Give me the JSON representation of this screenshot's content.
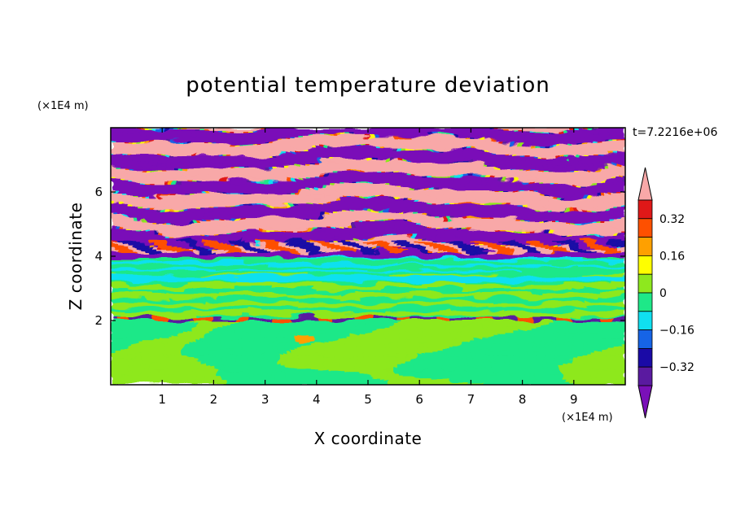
{
  "chart_data": {
    "type": "heatmap",
    "title": "potential temperature deviation",
    "xlabel": "X coordinate",
    "ylabel": "Z coordinate",
    "x_units": "(×1E4 m)",
    "y_units": "(×1E4 m)",
    "time_label": "t=7.2216e+06",
    "xlim": [
      0,
      10
    ],
    "ylim": [
      0,
      8
    ],
    "x_ticks": [
      "1",
      "2",
      "3",
      "4",
      "5",
      "6",
      "7",
      "8",
      "9"
    ],
    "y_ticks": [
      "2",
      "4",
      "6"
    ],
    "colorbar": {
      "labels": [
        "0.32",
        "0.16",
        "0",
        "-0.16",
        "-0.32"
      ],
      "label_display": [
        "0.32",
        "0.16",
        "0",
        "−0.16",
        "−0.32"
      ],
      "levels": [
        -0.4,
        -0.32,
        -0.24,
        -0.16,
        -0.08,
        0,
        0.08,
        0.16,
        0.24,
        0.32,
        0.4
      ],
      "colors": [
        "#5a1aa0",
        "#1a0aa6",
        "#1664e6",
        "#10e0f0",
        "#1ee888",
        "#8ee81e",
        "#fefe00",
        "#fea000",
        "#fe5000",
        "#e01818"
      ],
      "over_color": "#f8a8a8",
      "under_color": "#7a10b8"
    },
    "fields": [
      {
        "z": [
          0.0,
          1.0
        ],
        "dominant": "0 to 0.08",
        "secondary": "-0.08 to 0",
        "description": "mixed light green and mint blobs"
      },
      {
        "z": [
          1.0,
          2.0
        ],
        "dominant": "0 to 0.08",
        "secondary": "-0.08 to 0",
        "highlight": "0.16 to 0.24 near x=3.8"
      },
      {
        "z": [
          2.0,
          3.5
        ],
        "dominant": "-0.08 to 0",
        "secondary": "0 to 0.08"
      },
      {
        "z": [
          3.5,
          4.1
        ],
        "dominant": "-0.16 to -0.08",
        "secondary": "-0.40 to -0.32"
      },
      {
        "z": [
          4.1,
          8.0
        ],
        "dominant": "> 0.40",
        "secondary": "< -0.40",
        "description": "alternating pink and purple layers"
      }
    ]
  }
}
